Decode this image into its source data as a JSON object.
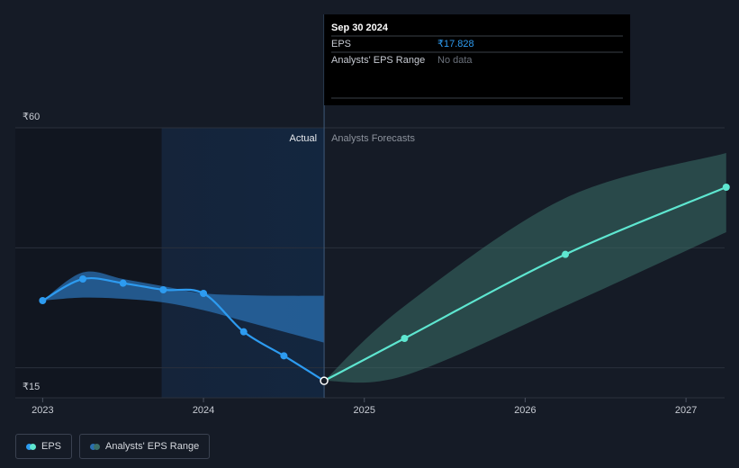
{
  "chart_data": {
    "type": "line",
    "xlim": [
      2022.83,
      2027.24
    ],
    "xticks": [
      2023,
      2024,
      2025,
      2026,
      2027
    ],
    "ylim": [
      15,
      60
    ],
    "yticks": [
      {
        "value": 60,
        "label": "₹60"
      },
      {
        "value": 40,
        "label": null
      },
      {
        "value": 20,
        "label": null
      },
      {
        "value": 15,
        "label": "₹15"
      }
    ],
    "grid": true,
    "divider_x": 2024.75,
    "highlight_start_x": 2023.74,
    "actual_label": "Actual",
    "forecast_label": "Analysts Forecasts",
    "series": [
      {
        "name": "EPS",
        "color": "#2d9bf0",
        "x": [
          2023.0,
          2023.25,
          2023.5,
          2023.75,
          2024.0,
          2024.25,
          2024.5,
          2024.75
        ],
        "values": [
          31.2,
          34.8,
          34.1,
          33.0,
          32.4,
          26.0,
          22.0,
          17.828
        ]
      },
      {
        "name": "Analysts' EPS Range",
        "color": "#3b6f68",
        "x": [
          2024.75,
          2025.25,
          2026.25,
          2027.25
        ],
        "low": [
          17.828,
          18.7,
          30.3,
          42.6
        ],
        "high": [
          17.828,
          30.3,
          48.3,
          55.8
        ]
      }
    ],
    "forecast": {
      "color": "#5ee6d0",
      "x": [
        2024.75,
        2025.25,
        2026.25,
        2027.25
      ],
      "values": [
        17.828,
        24.9,
        38.9,
        50.1
      ]
    },
    "past_range": {
      "color": "#2a6fb0",
      "x": [
        2023.0,
        2023.25,
        2023.5,
        2023.75,
        2024.0,
        2024.25,
        2024.5,
        2024.75
      ],
      "low": [
        31.2,
        31.7,
        31.5,
        30.9,
        29.6,
        27.8,
        26.0,
        24.2
      ],
      "high": [
        31.2,
        35.9,
        34.8,
        33.6,
        32.4,
        32.1,
        32.0,
        32.0
      ]
    },
    "tooltip": {
      "date": "Sep 30 2024",
      "rows": [
        {
          "label": "EPS",
          "value": "₹17.828"
        },
        {
          "label": "Analysts' EPS Range",
          "value": "No data"
        }
      ]
    }
  }
}
